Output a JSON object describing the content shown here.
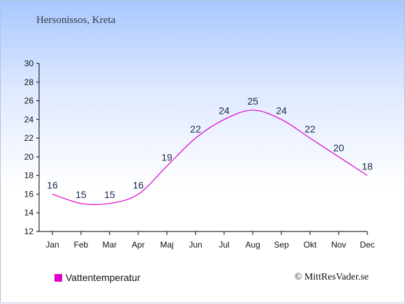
{
  "header": {
    "location": "Hersonissos, Kreta"
  },
  "legend": {
    "label": "Vattentemperatur"
  },
  "footer": {
    "credit": "© MittResVader.se"
  },
  "colors": {
    "series": "#dd00cc",
    "axis": "#000000",
    "label": "#1a2a4a"
  },
  "chart_data": {
    "type": "line",
    "categories": [
      "Jan",
      "Feb",
      "Mar",
      "Apr",
      "Maj",
      "Jun",
      "Jul",
      "Aug",
      "Sep",
      "Okt",
      "Nov",
      "Dec"
    ],
    "series": [
      {
        "name": "Vattentemperatur",
        "values": [
          16,
          15,
          15,
          16,
          19,
          22,
          24,
          25,
          24,
          22,
          20,
          18
        ]
      }
    ],
    "ylim": [
      12,
      30
    ],
    "yticks": [
      12,
      14,
      16,
      18,
      20,
      22,
      24,
      26,
      28,
      30
    ],
    "grid": false,
    "legend_position": "bottom-left"
  }
}
